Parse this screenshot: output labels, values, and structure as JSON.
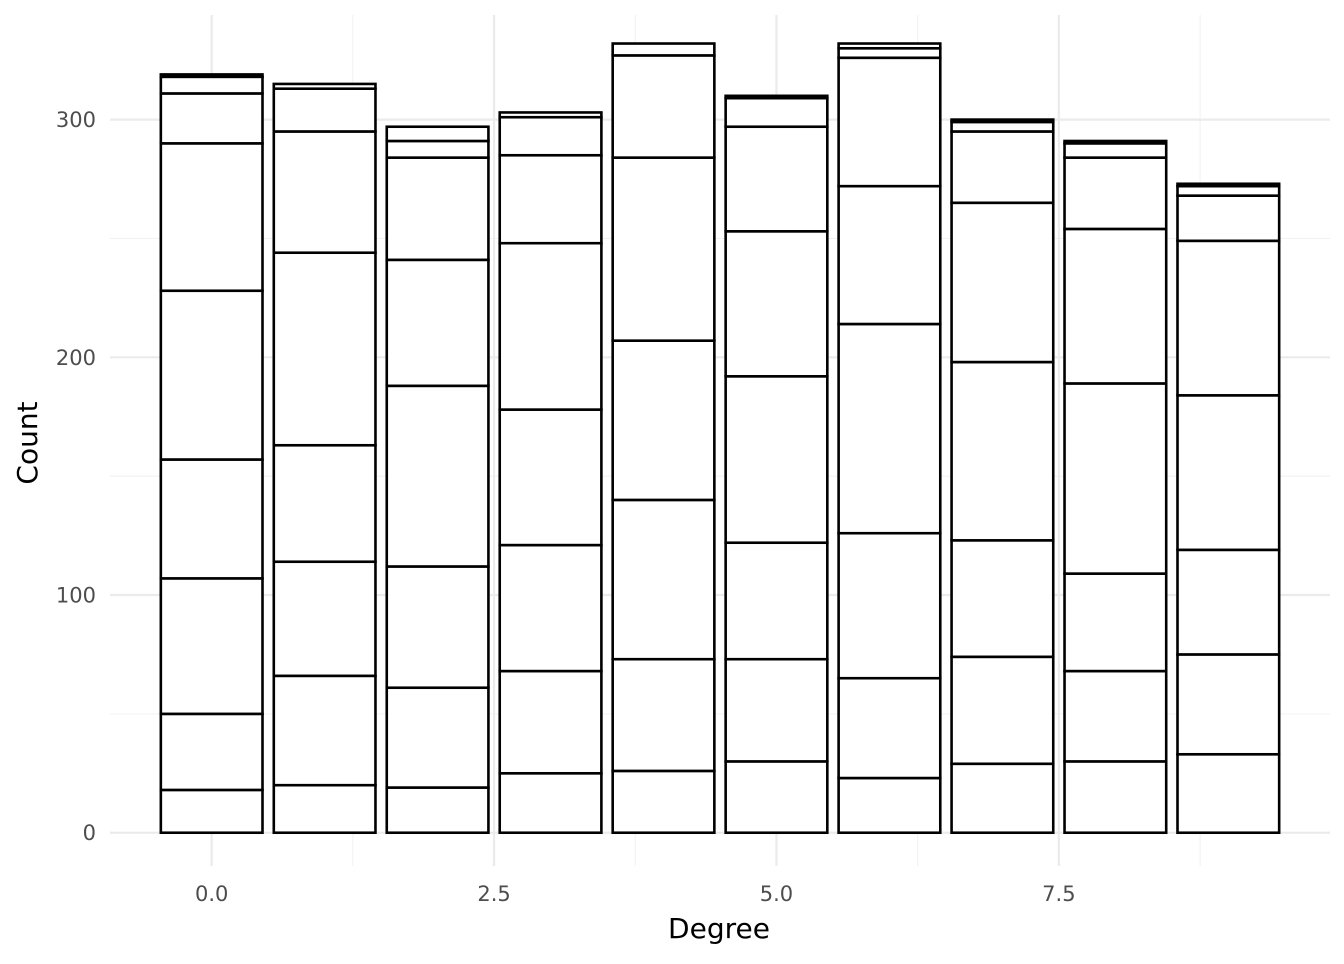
{
  "chart_data": {
    "type": "bar",
    "stacked": true,
    "title": "",
    "xlabel": "Degree",
    "ylabel": "Count",
    "x": [
      0,
      1,
      2,
      3,
      4,
      5,
      6,
      7,
      8,
      9
    ],
    "xlim": [
      -0.9,
      9.9
    ],
    "ylim": [
      -14,
      344
    ],
    "x_ticks": [
      0,
      2.5,
      5,
      7.5
    ],
    "x_tick_labels": [
      "0.0",
      "2.5",
      "5.0",
      "7.5"
    ],
    "y_ticks": [
      0,
      100,
      200,
      300
    ],
    "y_tick_labels": [
      "0",
      "100",
      "200",
      "300"
    ],
    "grid": true,
    "legend": "none",
    "fill_color": "#ffffff",
    "outline_color": "#000000",
    "stack_boundaries": [
      [
        18,
        50,
        107,
        157,
        228,
        290,
        311,
        318,
        319
      ],
      [
        20,
        66,
        114,
        163,
        244,
        295,
        313,
        315
      ],
      [
        19,
        61,
        112,
        188,
        241,
        284,
        291,
        297
      ],
      [
        25,
        68,
        121,
        178,
        248,
        285,
        301,
        303
      ],
      [
        26,
        73,
        140,
        207,
        284,
        327,
        332
      ],
      [
        30,
        73,
        122,
        192,
        253,
        297,
        309,
        310
      ],
      [
        23,
        65,
        126,
        214,
        272,
        326,
        330,
        332
      ],
      [
        29,
        74,
        123,
        198,
        265,
        295,
        299,
        300
      ],
      [
        30,
        68,
        109,
        189,
        254,
        284,
        290,
        291
      ],
      [
        33,
        75,
        119,
        184,
        249,
        268,
        272,
        273
      ]
    ]
  }
}
